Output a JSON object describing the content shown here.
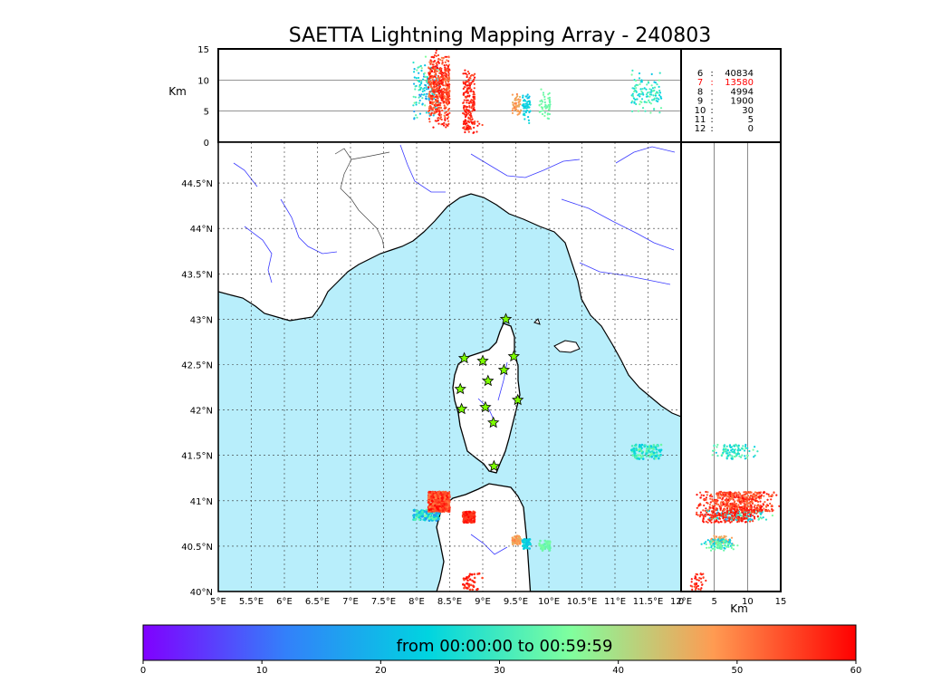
{
  "title": "SAETTA Lightning Mapping Array - 240803",
  "chart_data": {
    "type": "scatter",
    "map": {
      "lon_range": [
        5,
        12
      ],
      "lat_range": [
        40,
        44.95
      ],
      "lon_ticks": [
        "5°E",
        "5.5°E",
        "6°E",
        "6.5°E",
        "7°E",
        "7.5°E",
        "8°E",
        "8.5°E",
        "9°E",
        "9.5°E",
        "10°E",
        "10.5°E",
        "11°E",
        "11.5°E",
        "12°E"
      ],
      "lat_ticks": [
        "40°N",
        "40.5°N",
        "41°N",
        "41.5°N",
        "42°N",
        "42.5°N",
        "43°N",
        "43.5°N",
        "44°N",
        "44.5°N"
      ],
      "grid": true,
      "sea_color": "#b8eefb",
      "land_color": "#ffffff"
    },
    "top_panel": {
      "ylabel": "Km",
      "ylim": [
        0,
        15
      ],
      "yticks": [
        "0",
        "5",
        "10",
        "15"
      ],
      "ref_lines": [
        5,
        10
      ]
    },
    "side_panel": {
      "xlabel": "Km",
      "xlim": [
        0,
        15
      ],
      "xticks": [
        "0",
        "5",
        "10",
        "15"
      ],
      "ref_lines": [
        5,
        10
      ]
    },
    "stations": [
      {
        "lon": 9.35,
        "lat": 43.0
      },
      {
        "lon": 8.72,
        "lat": 42.57
      },
      {
        "lon": 9.0,
        "lat": 42.54
      },
      {
        "lon": 9.47,
        "lat": 42.59
      },
      {
        "lon": 9.32,
        "lat": 42.44
      },
      {
        "lon": 9.08,
        "lat": 42.32
      },
      {
        "lon": 8.66,
        "lat": 42.23
      },
      {
        "lon": 9.53,
        "lat": 42.11
      },
      {
        "lon": 8.68,
        "lat": 42.01
      },
      {
        "lon": 9.04,
        "lat": 42.03
      },
      {
        "lon": 9.16,
        "lat": 41.86
      },
      {
        "lon": 9.17,
        "lat": 41.38
      }
    ],
    "clusters": [
      {
        "lon": [
          7.95,
          8.35
        ],
        "lat": [
          40.78,
          40.9
        ],
        "alt": [
          3,
          14
        ],
        "t": [
          14,
          38
        ]
      },
      {
        "lon": [
          8.18,
          8.5
        ],
        "lat": [
          40.88,
          41.1
        ],
        "alt": [
          2,
          15
        ],
        "t": [
          50,
          60
        ]
      },
      {
        "lon": [
          8.7,
          8.88
        ],
        "lat": [
          40.76,
          40.88
        ],
        "alt": [
          2,
          12
        ],
        "t": [
          54,
          60
        ]
      },
      {
        "lon": [
          9.45,
          9.58
        ],
        "lat": [
          40.52,
          40.62
        ],
        "alt": [
          4,
          8
        ],
        "t": [
          45,
          50
        ]
      },
      {
        "lon": [
          9.6,
          9.72
        ],
        "lat": [
          40.47,
          40.58
        ],
        "alt": [
          3,
          9
        ],
        "t": [
          21,
          26
        ]
      },
      {
        "lon": [
          9.85,
          10.02
        ],
        "lat": [
          40.45,
          40.56
        ],
        "alt": [
          3,
          9
        ],
        "t": [
          33,
          36
        ]
      },
      {
        "lon": [
          11.25,
          11.7
        ],
        "lat": [
          41.46,
          41.62
        ],
        "alt": [
          4,
          12
        ],
        "t": [
          22,
          36
        ]
      },
      {
        "lon": [
          8.7,
          9.0
        ],
        "lat": [
          40.02,
          40.2
        ],
        "alt": [
          1,
          4
        ],
        "t": [
          54,
          60
        ]
      }
    ],
    "counts": [
      {
        "key": "6",
        "value": "40834",
        "highlight": false
      },
      {
        "key": "7",
        "value": "13580",
        "highlight": true
      },
      {
        "key": "8",
        "value": "4994",
        "highlight": false
      },
      {
        "key": "9",
        "value": "1900",
        "highlight": false
      },
      {
        "key": "10",
        "value": "30",
        "highlight": false
      },
      {
        "key": "11",
        "value": "5",
        "highlight": false
      },
      {
        "key": "12",
        "value": "0",
        "highlight": false
      }
    ],
    "colorbar": {
      "label": "from 00:00:00 to 00:59:59",
      "range": [
        0,
        60
      ],
      "ticks": [
        "0",
        "10",
        "20",
        "30",
        "40",
        "50",
        "60"
      ],
      "colormap": "rainbow"
    }
  }
}
